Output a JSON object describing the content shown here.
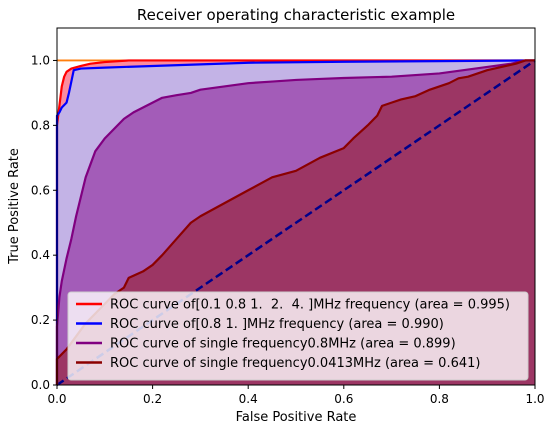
{
  "chart_data": {
    "type": "line",
    "title": "Receiver operating characteristic example",
    "xlabel": "False Positive Rate",
    "ylabel": "True Positive Rate",
    "xlim": [
      0.0,
      1.0
    ],
    "ylim": [
      0.0,
      1.1
    ],
    "xticks": [
      0.0,
      0.2,
      0.4,
      0.6,
      0.8,
      1.0
    ],
    "yticks": [
      0.0,
      0.2,
      0.4,
      0.6,
      0.8,
      1.0
    ],
    "xtick_labels": [
      "0.0",
      "0.2",
      "0.4",
      "0.6",
      "0.8",
      "1.0"
    ],
    "ytick_labels": [
      "0.0",
      "0.2",
      "0.4",
      "0.6",
      "0.8",
      "1.0"
    ],
    "grid": false,
    "legend_position": "lower-right",
    "series": [
      {
        "name": "ROC curve of[0.1 0.8 1.  2.  4. ]MHz frequency (area = 0.995)",
        "color": "#ff0000",
        "fill_color": "#fb8ca0",
        "points": [
          [
            0.0,
            0.0
          ],
          [
            0.0,
            0.8
          ],
          [
            0.005,
            0.86
          ],
          [
            0.01,
            0.92
          ],
          [
            0.015,
            0.95
          ],
          [
            0.02,
            0.965
          ],
          [
            0.03,
            0.975
          ],
          [
            0.05,
            0.983
          ],
          [
            0.07,
            0.99
          ],
          [
            0.1,
            0.995
          ],
          [
            0.15,
            1.0
          ],
          [
            1.0,
            1.0
          ]
        ]
      },
      {
        "name": "ROC curve of[0.8 1. ]MHz frequency (area = 0.990)",
        "color": "#0000ff",
        "fill_color": "#c3b3e6",
        "points": [
          [
            0.0,
            0.0
          ],
          [
            0.0,
            0.83
          ],
          [
            0.005,
            0.84
          ],
          [
            0.01,
            0.855
          ],
          [
            0.02,
            0.87
          ],
          [
            0.025,
            0.9
          ],
          [
            0.03,
            0.935
          ],
          [
            0.035,
            0.97
          ],
          [
            0.05,
            0.975
          ],
          [
            0.1,
            0.978
          ],
          [
            0.2,
            0.983
          ],
          [
            0.3,
            0.988
          ],
          [
            0.4,
            0.993
          ],
          [
            0.6,
            0.996
          ],
          [
            0.8,
            0.998
          ],
          [
            1.0,
            1.0
          ]
        ]
      },
      {
        "name": "ROC curve of single frequency0.8MHz (area = 0.899)",
        "color": "#800080",
        "fill_color": "#a35cb8",
        "points": [
          [
            0.0,
            0.0
          ],
          [
            0.0,
            0.18
          ],
          [
            0.005,
            0.27
          ],
          [
            0.01,
            0.32
          ],
          [
            0.02,
            0.39
          ],
          [
            0.03,
            0.45
          ],
          [
            0.04,
            0.52
          ],
          [
            0.05,
            0.58
          ],
          [
            0.06,
            0.64
          ],
          [
            0.07,
            0.68
          ],
          [
            0.08,
            0.72
          ],
          [
            0.1,
            0.76
          ],
          [
            0.12,
            0.79
          ],
          [
            0.14,
            0.82
          ],
          [
            0.16,
            0.84
          ],
          [
            0.18,
            0.855
          ],
          [
            0.2,
            0.87
          ],
          [
            0.22,
            0.885
          ],
          [
            0.25,
            0.893
          ],
          [
            0.28,
            0.9
          ],
          [
            0.3,
            0.91
          ],
          [
            0.35,
            0.92
          ],
          [
            0.4,
            0.93
          ],
          [
            0.45,
            0.935
          ],
          [
            0.5,
            0.94
          ],
          [
            0.55,
            0.943
          ],
          [
            0.6,
            0.946
          ],
          [
            0.65,
            0.948
          ],
          [
            0.7,
            0.95
          ],
          [
            0.75,
            0.955
          ],
          [
            0.8,
            0.96
          ],
          [
            0.85,
            0.97
          ],
          [
            0.9,
            0.98
          ],
          [
            0.95,
            0.99
          ],
          [
            0.98,
            1.0
          ],
          [
            1.0,
            1.0
          ]
        ]
      },
      {
        "name": "ROC curve of single frequency0.0413MHz (area = 0.641)",
        "color": "#8b0000",
        "fill_color": "#9c3664",
        "points": [
          [
            0.0,
            0.0
          ],
          [
            0.0,
            0.08
          ],
          [
            0.02,
            0.11
          ],
          [
            0.04,
            0.15
          ],
          [
            0.06,
            0.19
          ],
          [
            0.08,
            0.22
          ],
          [
            0.1,
            0.25
          ],
          [
            0.12,
            0.28
          ],
          [
            0.14,
            0.3
          ],
          [
            0.15,
            0.33
          ],
          [
            0.18,
            0.35
          ],
          [
            0.2,
            0.37
          ],
          [
            0.22,
            0.4
          ],
          [
            0.25,
            0.45
          ],
          [
            0.28,
            0.5
          ],
          [
            0.3,
            0.52
          ],
          [
            0.35,
            0.56
          ],
          [
            0.4,
            0.6
          ],
          [
            0.45,
            0.64
          ],
          [
            0.5,
            0.66
          ],
          [
            0.55,
            0.7
          ],
          [
            0.6,
            0.73
          ],
          [
            0.62,
            0.76
          ],
          [
            0.65,
            0.8
          ],
          [
            0.67,
            0.83
          ],
          [
            0.68,
            0.86
          ],
          [
            0.7,
            0.87
          ],
          [
            0.72,
            0.88
          ],
          [
            0.75,
            0.89
          ],
          [
            0.78,
            0.91
          ],
          [
            0.8,
            0.92
          ],
          [
            0.82,
            0.93
          ],
          [
            0.84,
            0.945
          ],
          [
            0.86,
            0.95
          ],
          [
            0.88,
            0.96
          ],
          [
            0.9,
            0.97
          ],
          [
            0.93,
            0.98
          ],
          [
            0.96,
            0.99
          ],
          [
            0.98,
            1.0
          ],
          [
            1.0,
            1.0
          ]
        ]
      }
    ],
    "reference_lines": [
      {
        "style": "dashed",
        "color": "#00008b",
        "points": [
          [
            0.0,
            0.0
          ],
          [
            1.0,
            1.0
          ]
        ]
      },
      {
        "style": "solid",
        "color": "#ff7f0e",
        "points": [
          [
            0.0,
            1.0
          ],
          [
            1.0,
            1.0
          ]
        ]
      }
    ]
  }
}
